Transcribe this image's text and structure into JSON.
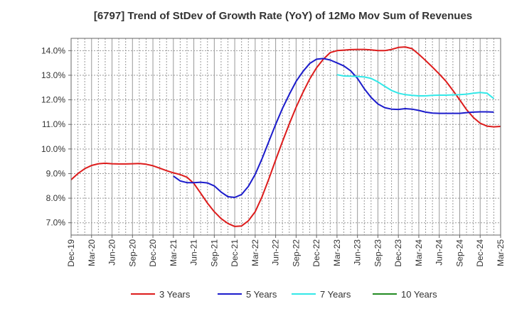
{
  "chart_data": {
    "type": "line",
    "title": "[6797]  Trend of StDev of Growth Rate (YoY) of 12Mo Mov Sum of Revenues",
    "xlabel": "",
    "ylabel": "",
    "ylim": [
      6.5,
      14.5
    ],
    "y_ticks": [
      7.0,
      8.0,
      9.0,
      10.0,
      11.0,
      12.0,
      13.0,
      14.0
    ],
    "y_tick_labels": [
      "7.0%",
      "8.0%",
      "9.0%",
      "10.0%",
      "11.0%",
      "12.0%",
      "13.0%",
      "14.0%"
    ],
    "x_range": [
      0,
      63
    ],
    "x_tick_labels": [
      "Dec-19",
      "Mar-20",
      "Jun-20",
      "Sep-20",
      "Dec-20",
      "Mar-21",
      "Jun-21",
      "Sep-21",
      "Dec-21",
      "Mar-22",
      "Jun-22",
      "Sep-22",
      "Dec-22",
      "Mar-23",
      "Jun-23",
      "Sep-23",
      "Dec-23",
      "Mar-24",
      "Jun-24",
      "Sep-24",
      "Dec-24",
      "Mar-25"
    ],
    "grid": true,
    "legend_position": "bottom",
    "series": [
      {
        "name": "3 Years",
        "color": "#dd1c1c",
        "x_start": 0,
        "values": [
          8.75,
          9.0,
          9.2,
          9.33,
          9.4,
          9.42,
          9.4,
          9.39,
          9.39,
          9.4,
          9.41,
          9.38,
          9.32,
          9.22,
          9.12,
          9.03,
          8.96,
          8.85,
          8.6,
          8.2,
          7.8,
          7.45,
          7.17,
          6.97,
          6.85,
          6.87,
          7.08,
          7.45,
          8.05,
          8.78,
          9.55,
          10.3,
          11.02,
          11.7,
          12.3,
          12.85,
          13.3,
          13.65,
          13.92,
          14.0,
          14.02,
          14.04,
          14.05,
          14.05,
          14.03,
          14.0,
          14.0,
          14.05,
          14.13,
          14.15,
          14.08,
          13.85,
          13.6,
          13.33,
          13.05,
          12.75,
          12.38,
          12.0,
          11.6,
          11.28,
          11.05,
          10.93,
          10.9,
          10.92
        ]
      },
      {
        "name": "5 Years",
        "color": "#1c1ccc",
        "x_start": 15,
        "values": [
          8.9,
          8.7,
          8.63,
          8.63,
          8.65,
          8.62,
          8.5,
          8.25,
          8.06,
          8.03,
          8.15,
          8.48,
          8.97,
          9.6,
          10.3,
          11.0,
          11.65,
          12.22,
          12.75,
          13.15,
          13.48,
          13.65,
          13.68,
          13.62,
          13.5,
          13.38,
          13.18,
          12.87,
          12.45,
          12.1,
          11.83,
          11.68,
          11.62,
          11.61,
          11.64,
          11.62,
          11.57,
          11.5,
          11.46,
          11.45,
          11.45,
          11.45,
          11.45,
          11.48,
          11.5,
          11.51,
          11.51,
          11.5
        ]
      },
      {
        "name": "7 Years",
        "color": "#33e8e8",
        "x_start": 39,
        "values": [
          13.02,
          12.97,
          12.96,
          12.95,
          12.93,
          12.87,
          12.73,
          12.55,
          12.38,
          12.27,
          12.21,
          12.18,
          12.16,
          12.16,
          12.18,
          12.19,
          12.19,
          12.2,
          12.21,
          12.23,
          12.27,
          12.3,
          12.27,
          12.05
        ]
      },
      {
        "name": "10 Years",
        "color": "#228b22",
        "x_start": null,
        "values": []
      }
    ]
  }
}
